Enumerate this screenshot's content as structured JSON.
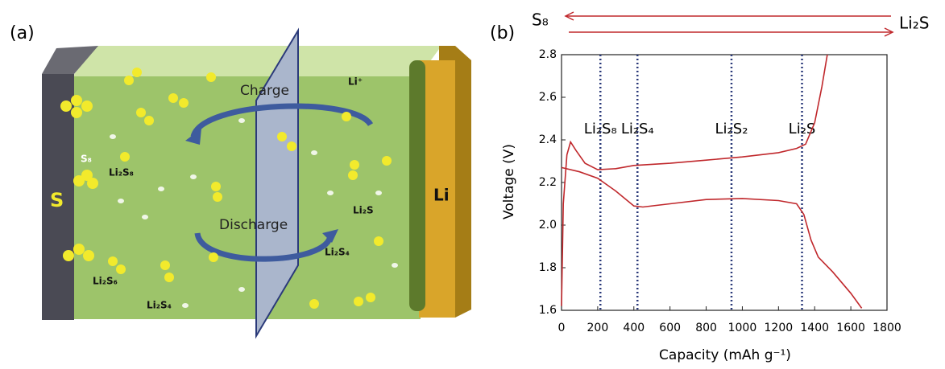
{
  "diagram": {
    "label": "(a)",
    "electrode_left": "S",
    "electrode_right": "Li",
    "charge": "Charge",
    "discharge": "Discharge",
    "species": [
      "S₈",
      "Li₂S₈",
      "Li₂S₆",
      "Li₂S₄",
      "Li₂S₄",
      "Li₂S",
      "Li⁺"
    ]
  },
  "chart_data": {
    "type": "line",
    "panel_label": "(b)",
    "arrow_left_label": "S₈",
    "arrow_right_label": "Li₂S",
    "xlabel": "Capacity (mAh g⁻¹)",
    "ylabel": "Voltage (V)",
    "xlim": [
      0,
      1800
    ],
    "xticks": [
      0,
      200,
      400,
      600,
      800,
      1000,
      1200,
      1400,
      1600,
      1800
    ],
    "ylim": [
      1.6,
      2.8
    ],
    "yticks": [
      1.6,
      1.8,
      {
        "value": 2,
        "label": "2.0"
      },
      2.2,
      2.4,
      2.6,
      2.8
    ],
    "markers": [
      {
        "x": 215,
        "label": "Li₂S₈"
      },
      {
        "x": 420,
        "label": "Li₂S₄"
      },
      {
        "x": 940,
        "label": "Li₂S₂"
      },
      {
        "x": 1330,
        "label": "Li₂S"
      }
    ],
    "marker_color": "#2b3a7a",
    "series": [
      {
        "color": "#c0282c",
        "x": [
          0,
          10,
          30,
          50,
          80,
          130,
          200,
          300,
          400,
          600,
          800,
          1000,
          1200,
          1300,
          1350,
          1400,
          1440,
          1470
        ],
        "values": [
          1.62,
          2.1,
          2.33,
          2.39,
          2.35,
          2.29,
          2.26,
          2.265,
          2.28,
          2.29,
          2.305,
          2.32,
          2.34,
          2.36,
          2.38,
          2.48,
          2.65,
          2.8
        ]
      },
      {
        "color": "#c0282c",
        "x": [
          0,
          100,
          200,
          300,
          400,
          450,
          600,
          800,
          1000,
          1200,
          1300,
          1340,
          1380,
          1420,
          1500,
          1600,
          1660
        ],
        "values": [
          2.27,
          2.25,
          2.22,
          2.16,
          2.09,
          2.085,
          2.1,
          2.12,
          2.125,
          2.115,
          2.1,
          2.05,
          1.93,
          1.85,
          1.78,
          1.68,
          1.61
        ]
      }
    ]
  }
}
